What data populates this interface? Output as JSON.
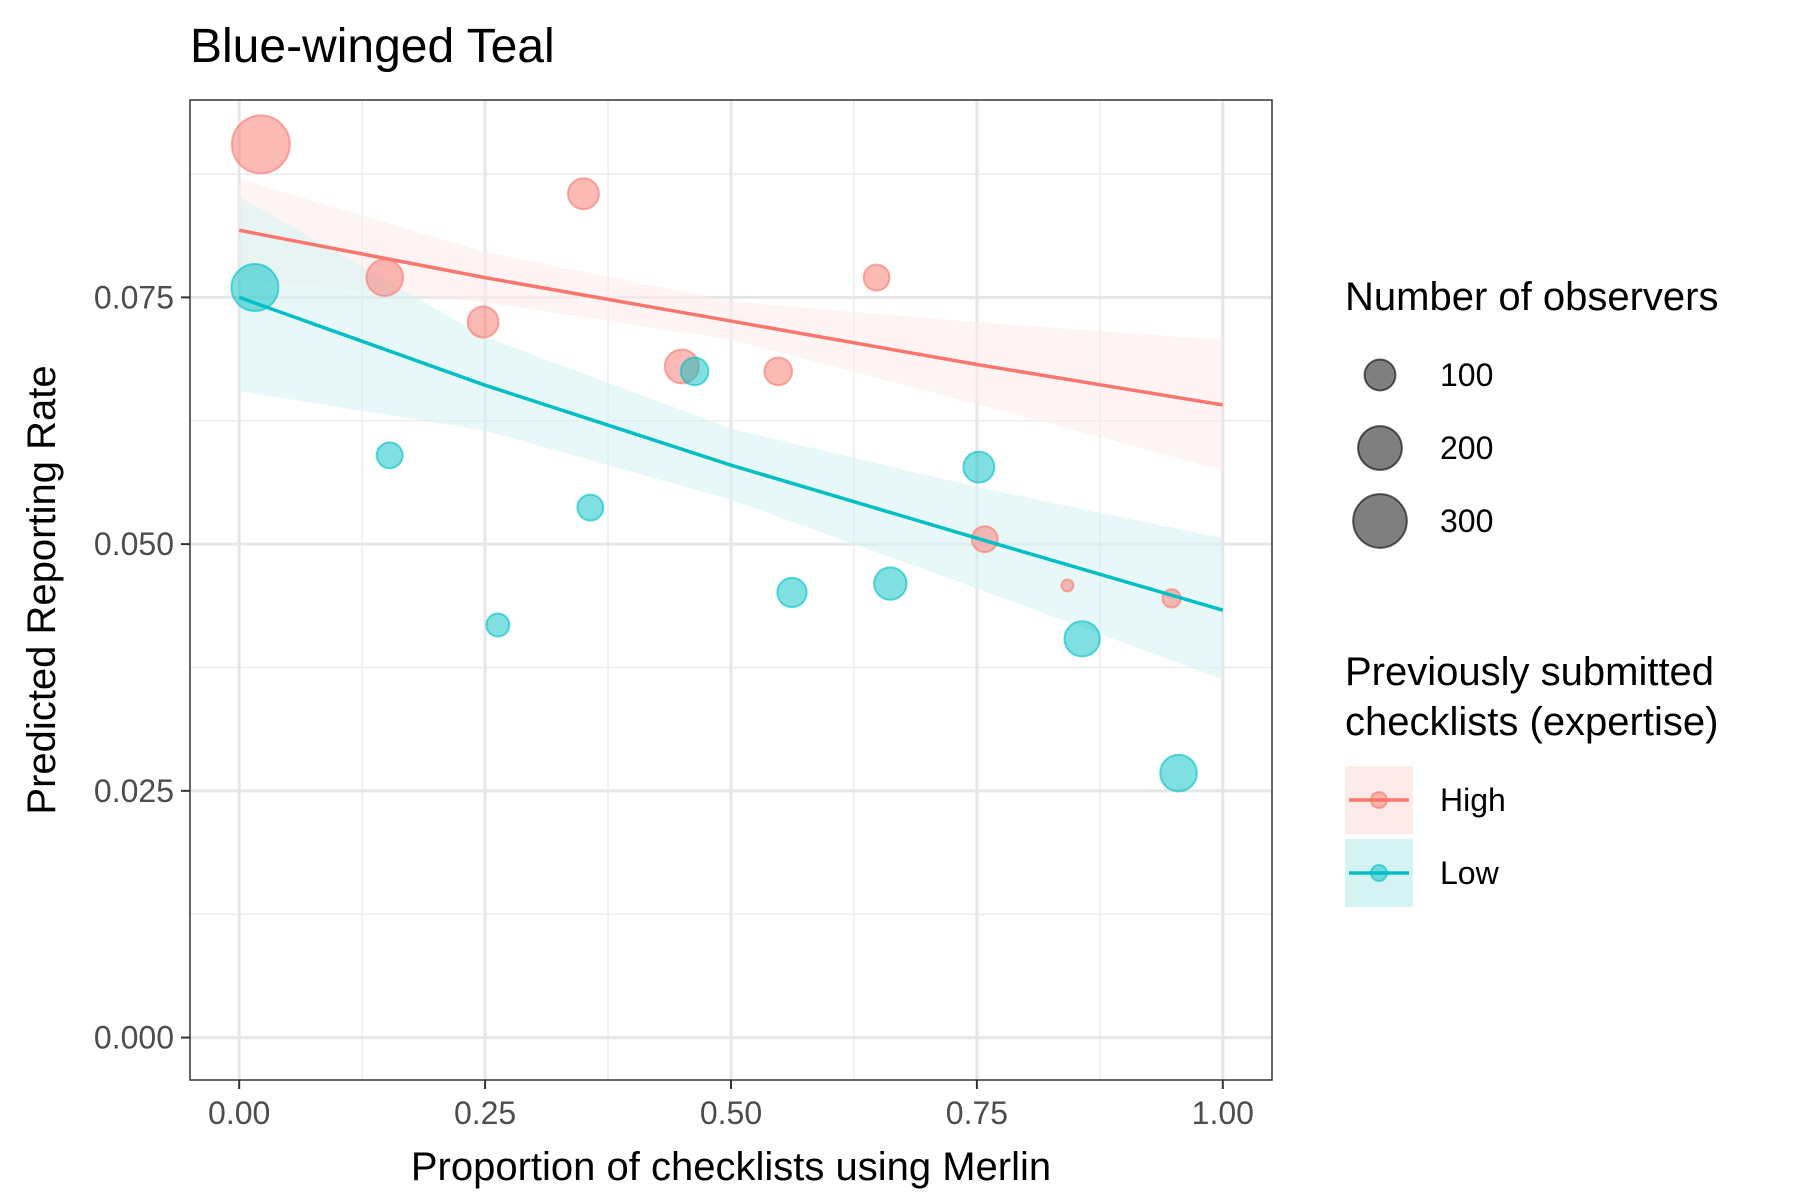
{
  "chart_data": {
    "type": "scatter",
    "title": "Blue-winged Teal",
    "xlabel": "Proportion of checklists using Merlin",
    "ylabel": "Predicted Reporting Rate",
    "xlim": [
      -0.05,
      1.05
    ],
    "ylim": [
      -0.0043,
      0.095
    ],
    "xticks": [
      0.0,
      0.25,
      0.5,
      0.75,
      1.0
    ],
    "xtick_labels": [
      "0.00",
      "0.25",
      "0.50",
      "0.75",
      "1.00"
    ],
    "yticks": [
      0.0,
      0.025,
      0.05,
      0.075
    ],
    "ytick_labels": [
      "0.000",
      "0.025",
      "0.050",
      "0.075"
    ],
    "grid": true,
    "legend_position": "right",
    "size_legend": {
      "title": "Number of observers",
      "entries": [
        {
          "label": "100",
          "value": 100
        },
        {
          "label": "200",
          "value": 200
        },
        {
          "label": "300",
          "value": 300
        }
      ]
    },
    "color_legend": {
      "title_lines": [
        "Previously submitted",
        "checklists (expertise)"
      ],
      "entries": [
        {
          "label": "High",
          "color": "#F8766D"
        },
        {
          "label": "Low",
          "color": "#00BFC4"
        }
      ]
    },
    "series": [
      {
        "name": "High",
        "color": "#F8766D",
        "points": [
          {
            "x": 0.022,
            "y": 0.0905,
            "size": 350
          },
          {
            "x": 0.148,
            "y": 0.077,
            "size": 140
          },
          {
            "x": 0.248,
            "y": 0.0725,
            "size": 100
          },
          {
            "x": 0.35,
            "y": 0.0855,
            "size": 100
          },
          {
            "x": 0.45,
            "y": 0.068,
            "size": 120
          },
          {
            "x": 0.548,
            "y": 0.0675,
            "size": 80
          },
          {
            "x": 0.648,
            "y": 0.077,
            "size": 70
          },
          {
            "x": 0.758,
            "y": 0.0505,
            "size": 70
          },
          {
            "x": 0.842,
            "y": 0.0458,
            "size": 15
          },
          {
            "x": 0.948,
            "y": 0.0445,
            "size": 35
          }
        ],
        "fit": {
          "x": [
            0.0,
            0.25,
            0.5,
            0.75,
            1.0
          ],
          "y": [
            0.0818,
            0.077,
            0.0726,
            0.0682,
            0.0641
          ]
        },
        "ci_lower": [
          0.0768,
          0.0745,
          0.0707,
          0.0642,
          0.0575
        ],
        "ci_upper": [
          0.087,
          0.0796,
          0.0746,
          0.0725,
          0.0707
        ]
      },
      {
        "name": "Low",
        "color": "#00BFC4",
        "points": [
          {
            "x": 0.016,
            "y": 0.076,
            "size": 230
          },
          {
            "x": 0.153,
            "y": 0.059,
            "size": 70
          },
          {
            "x": 0.263,
            "y": 0.0418,
            "size": 55
          },
          {
            "x": 0.357,
            "y": 0.0537,
            "size": 70
          },
          {
            "x": 0.463,
            "y": 0.0675,
            "size": 80
          },
          {
            "x": 0.562,
            "y": 0.0451,
            "size": 90
          },
          {
            "x": 0.662,
            "y": 0.046,
            "size": 110
          },
          {
            "x": 0.752,
            "y": 0.0578,
            "size": 100
          },
          {
            "x": 0.857,
            "y": 0.0404,
            "size": 130
          },
          {
            "x": 0.955,
            "y": 0.0268,
            "size": 140
          }
        ],
        "fit": {
          "x": [
            0.0,
            0.25,
            0.5,
            0.75,
            1.0
          ],
          "y": [
            0.075,
            0.0661,
            0.058,
            0.0506,
            0.0433
          ]
        },
        "ci_lower": [
          0.0655,
          0.0615,
          0.0545,
          0.0455,
          0.0363
        ],
        "ci_upper": [
          0.0852,
          0.071,
          0.0617,
          0.0558,
          0.0506
        ]
      }
    ]
  }
}
